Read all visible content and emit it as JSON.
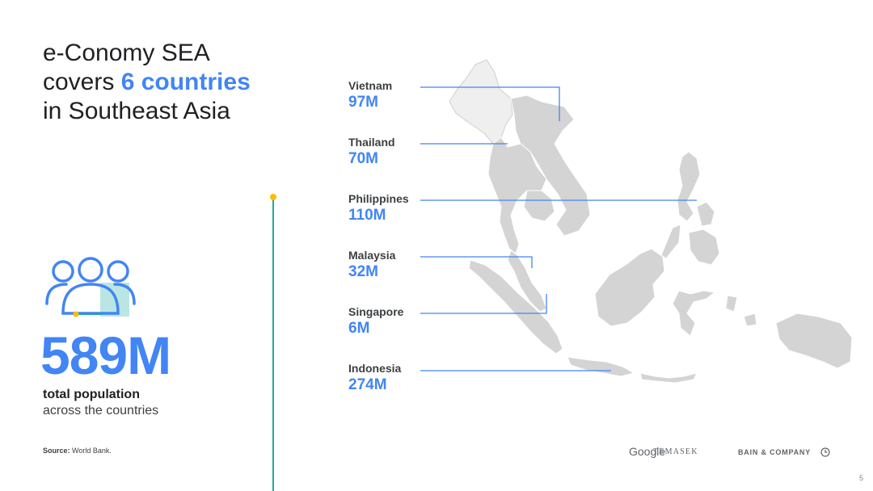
{
  "title": {
    "line1": "e-Conomy SEA",
    "line2_prefix": "covers ",
    "line2_highlight": "6 countries",
    "line3": "in Southeast Asia"
  },
  "total": {
    "value": "589M",
    "label": "total population",
    "sublabel": "across the countries"
  },
  "source": {
    "label": "Source:",
    "text": " World Bank."
  },
  "countries": [
    {
      "name": "Vietnam",
      "population": "97M"
    },
    {
      "name": "Thailand",
      "population": "70M"
    },
    {
      "name": "Philippines",
      "population": "110M"
    },
    {
      "name": "Malaysia",
      "population": "32M"
    },
    {
      "name": "Singapore",
      "population": "6M"
    },
    {
      "name": "Indonesia",
      "population": "274M"
    }
  ],
  "logos": {
    "google": "Google",
    "temasek": "TEMASEK",
    "bain": "BAIN & COMPANY"
  },
  "page_number": "5",
  "colors": {
    "accent_blue": "#4285f4",
    "teal": "#26a69a",
    "yellow": "#fbbc04",
    "map_gray": "#d4d4d4"
  }
}
